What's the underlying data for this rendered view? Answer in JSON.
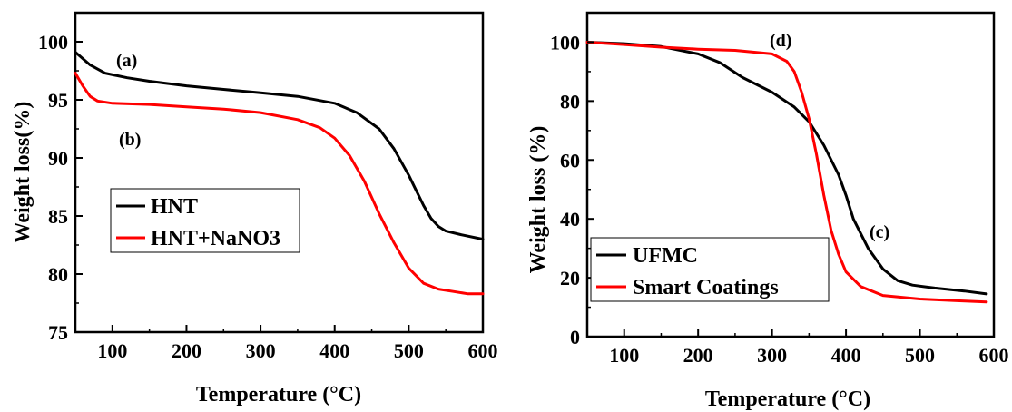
{
  "chart_data": [
    {
      "type": "line",
      "xlabel": "Temperature (°C)",
      "ylabel": "Weight loss(%)",
      "xlim": [
        50,
        600
      ],
      "ylim": [
        75,
        102.5
      ],
      "xticks": [
        100,
        200,
        300,
        400,
        500,
        600
      ],
      "yticks": [
        75,
        80,
        85,
        90,
        95,
        100
      ],
      "grid": false,
      "legend_position": "center-left",
      "annotations": [
        "(a)",
        "(b)"
      ],
      "series": [
        {
          "name": "HNT",
          "color": "#000000",
          "x": [
            50,
            70,
            90,
            120,
            150,
            200,
            250,
            300,
            350,
            400,
            430,
            460,
            480,
            500,
            510,
            520,
            530,
            540,
            550,
            570,
            600
          ],
          "y": [
            99.1,
            98.0,
            97.3,
            96.9,
            96.6,
            96.2,
            95.9,
            95.6,
            95.3,
            94.7,
            93.9,
            92.5,
            90.8,
            88.5,
            87.2,
            85.9,
            84.8,
            84.1,
            83.7,
            83.4,
            83.0
          ]
        },
        {
          "name": "HNT+NaNO3",
          "color": "#ff0000",
          "x": [
            50,
            60,
            70,
            80,
            100,
            150,
            200,
            250,
            300,
            350,
            380,
            400,
            420,
            440,
            460,
            480,
            500,
            520,
            540,
            560,
            580,
            600
          ],
          "y": [
            97.3,
            96.2,
            95.3,
            94.9,
            94.7,
            94.6,
            94.4,
            94.2,
            93.9,
            93.3,
            92.6,
            91.7,
            90.2,
            88.0,
            85.2,
            82.7,
            80.5,
            79.2,
            78.7,
            78.5,
            78.3,
            78.3
          ]
        }
      ]
    },
    {
      "type": "line",
      "xlabel": "Temperature (°C)",
      "ylabel": "Weight loss (%)",
      "xlim": [
        50,
        600
      ],
      "ylim": [
        0,
        110
      ],
      "xticks": [
        100,
        200,
        300,
        400,
        500,
        600
      ],
      "yticks": [
        0,
        20,
        40,
        60,
        80,
        100
      ],
      "grid": false,
      "legend_position": "bottom-left",
      "annotations": [
        "(d)",
        "(c)"
      ],
      "series": [
        {
          "name": "UFMC",
          "color": "#000000",
          "x": [
            50,
            100,
            150,
            200,
            230,
            260,
            300,
            330,
            350,
            370,
            390,
            400,
            410,
            430,
            450,
            470,
            490,
            520,
            560,
            590
          ],
          "y": [
            100,
            99.5,
            98.5,
            96.0,
            93.0,
            88.0,
            83.0,
            78.0,
            73.0,
            65.0,
            55.0,
            48.0,
            40.0,
            30.0,
            23.0,
            19.0,
            17.5,
            16.5,
            15.5,
            14.5
          ]
        },
        {
          "name": "Smart Coatings",
          "color": "#ff0000",
          "x": [
            50,
            100,
            150,
            200,
            250,
            300,
            320,
            330,
            340,
            350,
            360,
            370,
            380,
            390,
            400,
            420,
            450,
            500,
            550,
            590
          ],
          "y": [
            100,
            99.2,
            98.3,
            97.6,
            97.2,
            96.0,
            93.5,
            90.0,
            83.0,
            74.0,
            62.0,
            48.0,
            36.0,
            28.0,
            22.0,
            17.0,
            14.0,
            12.8,
            12.2,
            11.8
          ]
        }
      ]
    }
  ]
}
